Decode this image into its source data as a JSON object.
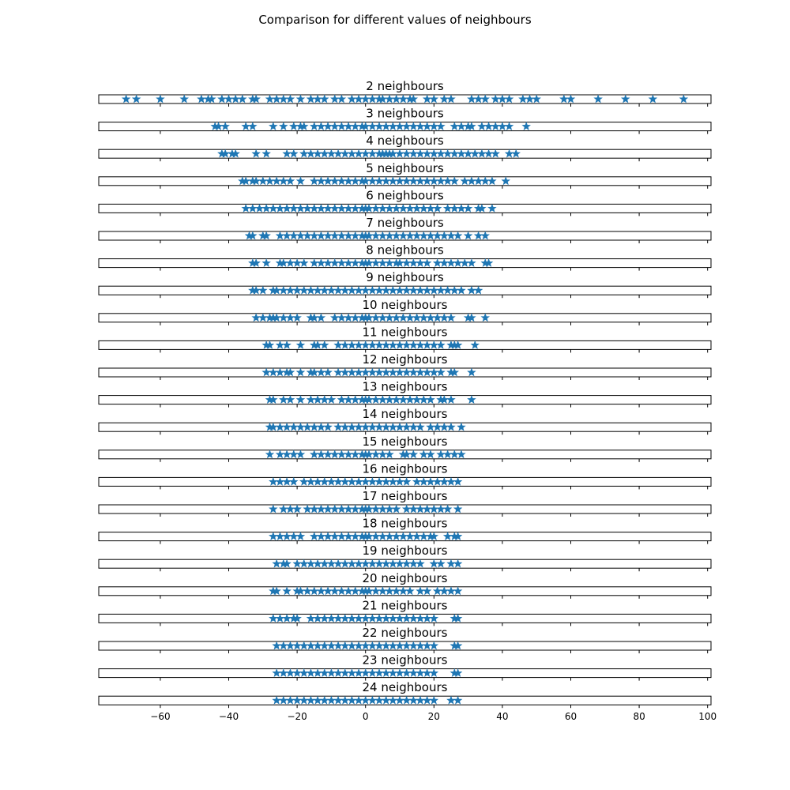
{
  "figure": {
    "title": "Comparison for different values of neighbours"
  },
  "colors": {
    "marker": "#1f77b4",
    "axes": "#000000"
  },
  "chart_data": {
    "type": "scatter",
    "marker": "star",
    "xlim": [
      -78,
      101
    ],
    "xticks": [
      -60,
      -40,
      -20,
      0,
      20,
      40,
      60,
      80,
      100
    ],
    "xtick_labels": [
      "−60",
      "−40",
      "−20",
      "0",
      "20",
      "40",
      "60",
      "80",
      "100"
    ],
    "panels": [
      {
        "title": "2 neighbours",
        "x": [
          -70,
          -67,
          -60,
          -53,
          -48,
          -46,
          -45,
          -42,
          -40,
          -38,
          -36,
          -33,
          -32,
          -28,
          -26,
          -24,
          -22,
          -19,
          -16,
          -14,
          -12,
          -9,
          -7,
          -4,
          -2,
          0,
          2,
          4,
          5,
          7,
          9,
          11,
          13,
          14,
          18,
          20,
          23,
          25,
          31,
          33,
          35,
          38,
          40,
          42,
          46,
          48,
          50,
          58,
          60,
          68,
          76,
          84,
          93
        ]
      },
      {
        "title": "3 neighbours",
        "x": [
          -44,
          -43,
          -41,
          -35,
          -33,
          -27,
          -24,
          -21,
          -19,
          -18,
          -15,
          -13,
          -11,
          -9,
          -7,
          -5,
          -3,
          -1,
          0,
          2,
          4,
          6,
          8,
          10,
          12,
          14,
          16,
          18,
          20,
          22,
          26,
          28,
          30,
          31,
          34,
          36,
          38,
          40,
          42,
          47
        ]
      },
      {
        "title": "4 neighbours",
        "x": [
          -42,
          -41,
          -39,
          -38,
          -32,
          -29,
          -23,
          -21,
          -18,
          -16,
          -14,
          -12,
          -10,
          -8,
          -6,
          -4,
          -2,
          0,
          2,
          4,
          5,
          6,
          7,
          8,
          10,
          12,
          14,
          16,
          18,
          20,
          22,
          24,
          26,
          28,
          30,
          32,
          34,
          36,
          38,
          42,
          44
        ]
      },
      {
        "title": "5 neighbours",
        "x": [
          -36,
          -35,
          -33,
          -32,
          -30,
          -28,
          -26,
          -24,
          -22,
          -19,
          -15,
          -13,
          -11,
          -9,
          -7,
          -5,
          -3,
          -1,
          0,
          2,
          4,
          6,
          8,
          10,
          12,
          14,
          16,
          18,
          20,
          22,
          24,
          26,
          29,
          31,
          33,
          35,
          37,
          41
        ]
      },
      {
        "title": "6 neighbours",
        "x": [
          -35,
          -33,
          -31,
          -29,
          -27,
          -25,
          -23,
          -21,
          -19,
          -17,
          -15,
          -13,
          -11,
          -9,
          -7,
          -5,
          -3,
          -1,
          0,
          1,
          3,
          5,
          7,
          9,
          11,
          13,
          15,
          17,
          19,
          21,
          24,
          26,
          28,
          30,
          33,
          34,
          37
        ]
      },
      {
        "title": "7 neighbours",
        "x": [
          -34,
          -33,
          -30,
          -29,
          -25,
          -23,
          -21,
          -19,
          -17,
          -15,
          -13,
          -11,
          -9,
          -7,
          -5,
          -3,
          -1,
          0,
          1,
          3,
          5,
          7,
          9,
          11,
          13,
          15,
          17,
          19,
          21,
          23,
          25,
          27,
          30,
          33,
          35
        ]
      },
      {
        "title": "8 neighbours",
        "x": [
          -33,
          -32,
          -29,
          -25,
          -24,
          -22,
          -20,
          -18,
          -15,
          -13,
          -11,
          -9,
          -7,
          -5,
          -3,
          -1,
          0,
          1,
          3,
          5,
          7,
          9,
          10,
          12,
          14,
          16,
          18,
          21,
          23,
          25,
          27,
          29,
          31,
          35,
          36
        ]
      },
      {
        "title": "9 neighbours",
        "x": [
          -33,
          -32,
          -30,
          -27,
          -26,
          -24,
          -22,
          -20,
          -18,
          -16,
          -14,
          -12,
          -10,
          -8,
          -6,
          -4,
          -2,
          0,
          2,
          4,
          6,
          8,
          10,
          12,
          14,
          16,
          18,
          20,
          22,
          24,
          26,
          28,
          31,
          33
        ]
      },
      {
        "title": "10 neighbours",
        "x": [
          -32,
          -30,
          -28,
          -27,
          -26,
          -24,
          -22,
          -20,
          -16,
          -15,
          -13,
          -9,
          -7,
          -5,
          -3,
          -1,
          0,
          1,
          3,
          5,
          7,
          9,
          11,
          13,
          15,
          17,
          19,
          21,
          23,
          25,
          30,
          31,
          35
        ]
      },
      {
        "title": "11 neighbours",
        "x": [
          -29,
          -28,
          -25,
          -23,
          -19,
          -15,
          -14,
          -12,
          -8,
          -6,
          -4,
          -2,
          0,
          2,
          4,
          6,
          8,
          10,
          12,
          14,
          16,
          18,
          20,
          22,
          25,
          26,
          27,
          32
        ]
      },
      {
        "title": "12 neighbours",
        "x": [
          -29,
          -27,
          -25,
          -23,
          -22,
          -19,
          -16,
          -15,
          -13,
          -11,
          -8,
          -6,
          -4,
          -2,
          0,
          2,
          4,
          6,
          8,
          10,
          12,
          14,
          16,
          18,
          20,
          22,
          25,
          26,
          31
        ]
      },
      {
        "title": "13 neighbours",
        "x": [
          -28,
          -27,
          -24,
          -22,
          -19,
          -16,
          -14,
          -12,
          -10,
          -7,
          -5,
          -3,
          -1,
          0,
          1,
          3,
          5,
          7,
          9,
          11,
          13,
          15,
          17,
          19,
          22,
          23,
          25,
          31
        ]
      },
      {
        "title": "14 neighbours",
        "x": [
          -28,
          -27,
          -25,
          -23,
          -21,
          -19,
          -17,
          -15,
          -13,
          -11,
          -8,
          -6,
          -4,
          -2,
          0,
          2,
          4,
          6,
          8,
          10,
          12,
          14,
          16,
          19,
          21,
          23,
          25,
          28
        ]
      },
      {
        "title": "15 neighbours",
        "x": [
          -28,
          -25,
          -23,
          -21,
          -19,
          -15,
          -13,
          -11,
          -9,
          -7,
          -5,
          -3,
          -1,
          0,
          1,
          3,
          5,
          7,
          11,
          12,
          14,
          17,
          19,
          22,
          24,
          26,
          28
        ]
      },
      {
        "title": "16 neighbours",
        "x": [
          -27,
          -25,
          -23,
          -21,
          -18,
          -16,
          -14,
          -12,
          -10,
          -8,
          -6,
          -4,
          -2,
          0,
          2,
          4,
          6,
          8,
          10,
          12,
          15,
          17,
          19,
          21,
          23,
          25,
          27
        ]
      },
      {
        "title": "17 neighbours",
        "x": [
          -27,
          -24,
          -22,
          -20,
          -17,
          -15,
          -13,
          -11,
          -9,
          -7,
          -5,
          -3,
          -1,
          0,
          1,
          3,
          5,
          7,
          9,
          12,
          14,
          16,
          18,
          20,
          22,
          24,
          27
        ]
      },
      {
        "title": "18 neighbours",
        "x": [
          -27,
          -25,
          -23,
          -21,
          -19,
          -15,
          -13,
          -11,
          -9,
          -7,
          -5,
          -3,
          -1,
          0,
          1,
          3,
          5,
          7,
          9,
          11,
          13,
          15,
          17,
          19,
          20,
          24,
          26,
          27
        ]
      },
      {
        "title": "19 neighbours",
        "x": [
          -26,
          -24,
          -23,
          -20,
          -18,
          -16,
          -14,
          -12,
          -10,
          -8,
          -6,
          -4,
          -2,
          0,
          2,
          4,
          6,
          8,
          10,
          12,
          14,
          16,
          20,
          22,
          25,
          27
        ]
      },
      {
        "title": "20 neighbours",
        "x": [
          -27,
          -26,
          -23,
          -20,
          -19,
          -17,
          -15,
          -13,
          -11,
          -9,
          -7,
          -5,
          -3,
          -1,
          0,
          1,
          3,
          5,
          7,
          9,
          11,
          13,
          16,
          18,
          21,
          23,
          25,
          27
        ]
      },
      {
        "title": "21 neighbours",
        "x": [
          -27,
          -25,
          -23,
          -21,
          -20,
          -16,
          -14,
          -12,
          -10,
          -8,
          -6,
          -4,
          -2,
          0,
          2,
          4,
          6,
          8,
          10,
          12,
          14,
          16,
          18,
          20,
          26,
          27
        ]
      },
      {
        "title": "22 neighbours",
        "x": [
          -26,
          -24,
          -22,
          -20,
          -18,
          -16,
          -14,
          -12,
          -10,
          -8,
          -6,
          -4,
          -2,
          0,
          2,
          4,
          6,
          8,
          10,
          12,
          14,
          16,
          18,
          20,
          26,
          27
        ]
      },
      {
        "title": "23 neighbours",
        "x": [
          -26,
          -24,
          -22,
          -20,
          -18,
          -16,
          -14,
          -12,
          -10,
          -8,
          -6,
          -4,
          -2,
          0,
          2,
          4,
          6,
          8,
          10,
          12,
          14,
          16,
          18,
          20,
          26,
          27
        ]
      },
      {
        "title": "24 neighbours",
        "x": [
          -26,
          -24,
          -22,
          -20,
          -18,
          -16,
          -14,
          -12,
          -10,
          -8,
          -6,
          -4,
          -2,
          0,
          2,
          4,
          6,
          8,
          10,
          12,
          14,
          16,
          18,
          20,
          25,
          27
        ]
      }
    ]
  }
}
